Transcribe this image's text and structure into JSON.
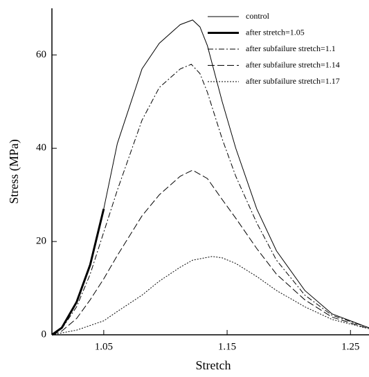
{
  "chart_data": {
    "type": "line",
    "xlabel": "Stretch",
    "ylabel": "Stress (MPa)",
    "xlim": [
      1.008,
      1.265
    ],
    "ylim": [
      0,
      70
    ],
    "xticks": [
      1.05,
      1.15,
      1.25
    ],
    "yticks": [
      0,
      20,
      40,
      60
    ],
    "legend": "upper right",
    "series": [
      {
        "name": "control",
        "color": "#000000",
        "style": "solid",
        "width": 1,
        "x": [
          1.008,
          1.016,
          1.028,
          1.039,
          1.05,
          1.061,
          1.081,
          1.095,
          1.112,
          1.122,
          1.128,
          1.134,
          1.146,
          1.157,
          1.174,
          1.19,
          1.213,
          1.235,
          1.265
        ],
        "values": [
          0,
          1.5,
          7,
          15,
          27,
          41,
          57,
          62.5,
          66.5,
          67.5,
          66,
          62,
          50,
          40,
          27,
          18,
          9.5,
          4.5,
          1.5
        ]
      },
      {
        "name": "after stretch=1.05",
        "color": "#000000",
        "style": "solid",
        "width": 3,
        "x": [
          1.008,
          1.016,
          1.028,
          1.039,
          1.05
        ],
        "values": [
          0,
          1.5,
          7,
          15,
          27
        ]
      },
      {
        "name": "after subfailure stretch=1.1",
        "color": "#000000",
        "style": "dashdot",
        "width": 1,
        "x": [
          1.008,
          1.016,
          1.028,
          1.039,
          1.05,
          1.061,
          1.081,
          1.095,
          1.112,
          1.121,
          1.128,
          1.134,
          1.146,
          1.157,
          1.174,
          1.19,
          1.213,
          1.235,
          1.265
        ],
        "values": [
          0,
          1.3,
          6,
          13,
          22,
          31,
          46,
          53,
          57,
          58,
          56,
          52,
          42,
          34,
          24,
          16,
          8.5,
          4.2,
          1.5
        ]
      },
      {
        "name": "after subfailure stretch=1.14",
        "color": "#000000",
        "style": "dashed",
        "width": 1,
        "x": [
          1.008,
          1.016,
          1.028,
          1.039,
          1.05,
          1.061,
          1.081,
          1.095,
          1.112,
          1.122,
          1.134,
          1.146,
          1.157,
          1.174,
          1.19,
          1.213,
          1.235,
          1.265
        ],
        "values": [
          0,
          0.8,
          3.5,
          7.5,
          12,
          17,
          25.5,
          30,
          34,
          35.3,
          33.5,
          29,
          25,
          18.5,
          13,
          7.5,
          3.8,
          1.3
        ]
      },
      {
        "name": "after subfailure stretch=1.17",
        "color": "#000000",
        "style": "dotted",
        "width": 1,
        "x": [
          1.008,
          1.028,
          1.05,
          1.061,
          1.081,
          1.095,
          1.112,
          1.122,
          1.138,
          1.146,
          1.157,
          1.174,
          1.19,
          1.213,
          1.235,
          1.265
        ],
        "values": [
          0,
          1,
          3,
          5,
          8.5,
          11.5,
          14.5,
          16,
          16.8,
          16.5,
          15.3,
          12.5,
          9.5,
          6,
          3.3,
          1.3
        ]
      }
    ]
  }
}
